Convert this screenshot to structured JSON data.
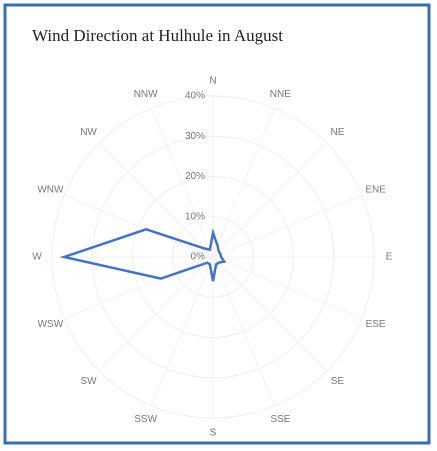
{
  "chart_data": {
    "type": "radar",
    "title": "Wind Direction at Hulhule in August",
    "categories": [
      "N",
      "NNE",
      "NE",
      "ENE",
      "E",
      "ESE",
      "SE",
      "SSE",
      "S",
      "SSW",
      "SW",
      "WSW",
      "W",
      "WNW",
      "NW",
      "NNW"
    ],
    "values": [
      6,
      3,
      2,
      2,
      2,
      3,
      2,
      2,
      6,
      2,
      2,
      14,
      37,
      18,
      3,
      2
    ],
    "color": "#4472c4",
    "ylim": [
      0,
      40
    ],
    "yticks": [
      {
        "value": 0,
        "label": "0%"
      },
      {
        "value": 10,
        "label": "10%"
      },
      {
        "value": 20,
        "label": "20%"
      },
      {
        "value": 30,
        "label": "30%"
      },
      {
        "value": 40,
        "label": "40%"
      }
    ],
    "grid": true
  }
}
